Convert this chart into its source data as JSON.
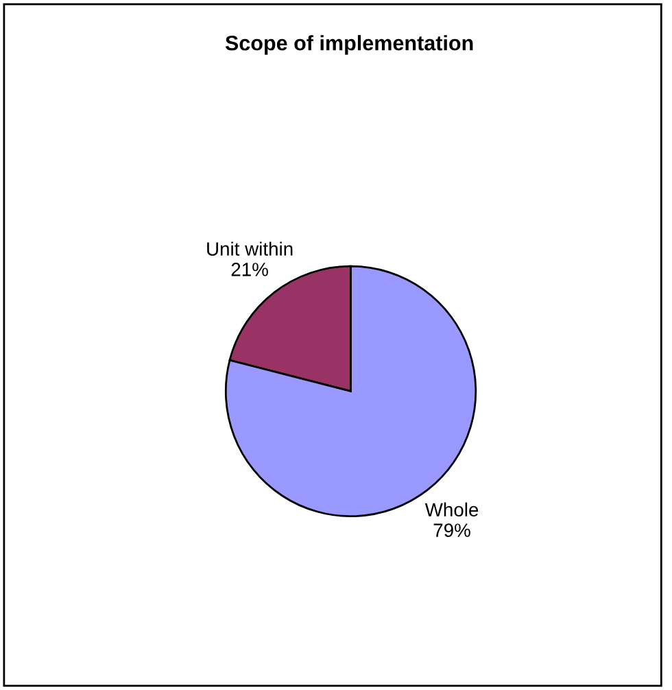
{
  "chart_data": {
    "type": "pie",
    "title": "Scope of implementation",
    "categories": [
      "Unit within",
      "Whole"
    ],
    "values": [
      21,
      79
    ],
    "colors": [
      "#993366",
      "#9999ff"
    ],
    "value_labels": [
      "21%",
      "79%"
    ]
  }
}
